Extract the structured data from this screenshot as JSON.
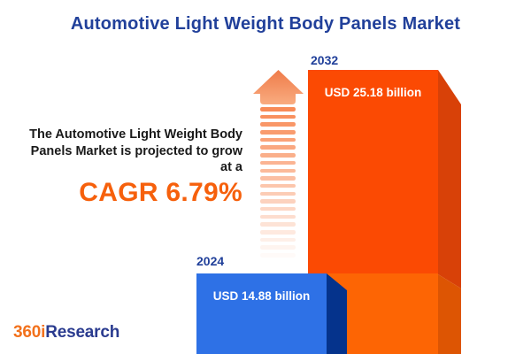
{
  "title": "Automotive Light Weight Body Panels Market",
  "description": {
    "line1": "The Automotive Light Weight Body",
    "line2": "Panels Market is projected to grow",
    "line3": "at a",
    "cagr_text": "CAGR 6.79%"
  },
  "chart_data": {
    "type": "bar",
    "categories": [
      "2024",
      "2032"
    ],
    "values": [
      14.88,
      25.18
    ],
    "unit": "USD billion",
    "value_labels": [
      "USD 14.88 billion",
      "USD 25.18 billion"
    ],
    "title": "Automotive Light Weight Body Panels Market",
    "cagr_percent": 6.79,
    "legend": "none",
    "axes": "none",
    "bar_colors": [
      "#2E71E6",
      "#FB4A03"
    ]
  },
  "colors": {
    "title_navy": "#21409A",
    "text_dark": "#1A1A1A",
    "accent_orange": "#F6600C",
    "bar_2024_front": "#2E71E6",
    "bar_2024_side": "#05338C",
    "bar_2032_front_upper": "#FB4A03",
    "bar_2032_front_lower": "#FD6504",
    "bar_2032_side_upper": "#D84108",
    "bar_2032_side_lower": "#DD5503",
    "arrow_grad_top": "#EF7B49",
    "arrow_grad_bottom": "#F9AC80",
    "dash_orange": "#F8854E",
    "logo_orange": "#F2711C",
    "logo_navy": "#2A3B8F"
  },
  "logo": {
    "part1": "360i",
    "part2": "Research"
  }
}
